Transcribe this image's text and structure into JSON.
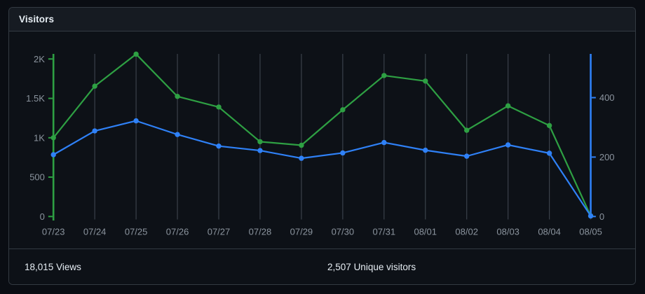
{
  "card": {
    "title": "Visitors"
  },
  "footer": {
    "views": {
      "value": "18,015",
      "label": "Views"
    },
    "unique": {
      "value": "2,507",
      "label": "Unique visitors"
    }
  },
  "chart_data": {
    "type": "line",
    "title": "Visitors",
    "x": [
      "07/23",
      "07/24",
      "07/25",
      "07/26",
      "07/27",
      "07/28",
      "07/29",
      "07/30",
      "07/31",
      "08/01",
      "08/02",
      "08/03",
      "08/04",
      "08/05"
    ],
    "series": [
      {
        "name": "Views",
        "axis": "left",
        "color": "#2ea043",
        "values": [
          1000,
          1655,
          2062,
          1525,
          1390,
          950,
          905,
          1355,
          1790,
          1720,
          1095,
          1405,
          1155,
          8
        ]
      },
      {
        "name": "Unique visitors",
        "axis": "right",
        "color": "#2f81f7",
        "values": [
          208,
          288,
          322,
          276,
          237,
          222,
          196,
          214,
          249,
          223,
          203,
          241,
          213,
          2
        ]
      }
    ],
    "left_axis": {
      "title": "Views",
      "color": "#2ea043",
      "tick_values": [
        0,
        500,
        1000,
        1500,
        2000
      ],
      "tick_labels": [
        "0",
        "500",
        "1K",
        "1.5K",
        "2K"
      ],
      "range": [
        0,
        2062
      ]
    },
    "right_axis": {
      "title": "Unique visitors",
      "color": "#2f81f7",
      "tick_values": [
        0,
        200,
        400
      ],
      "tick_labels": [
        "0",
        "200",
        "400"
      ],
      "range": [
        0,
        547
      ]
    },
    "grid": "vertical",
    "legend_position": "none",
    "tick_label_color": "#8b949e",
    "grid_color": "#3a414a"
  }
}
